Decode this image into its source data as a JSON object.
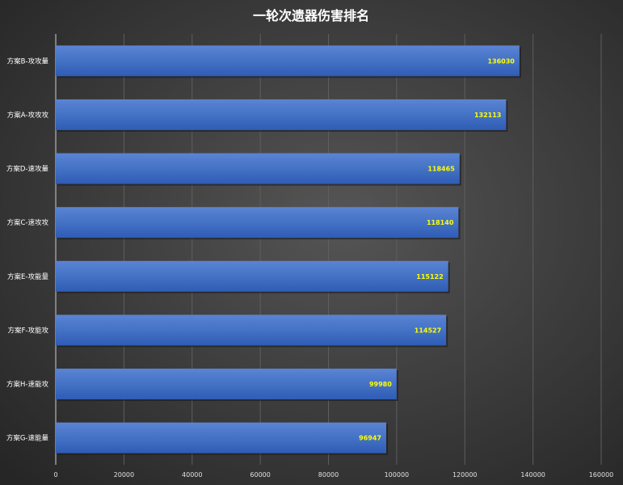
{
  "chart_data": {
    "type": "bar",
    "orientation": "horizontal",
    "title": "一轮次遗器伤害排名",
    "categories": [
      "方案B-攻攻量",
      "方案A-攻攻攻",
      "方案D-速攻量",
      "方案C-速攻攻",
      "方案E-攻能量",
      "方案F-攻能攻",
      "方案H-速能攻",
      "方案G-速能量"
    ],
    "values": [
      136030,
      132113,
      118465,
      118140,
      115122,
      114527,
      99980,
      96947
    ],
    "xlim": [
      0,
      160000
    ],
    "xticks": [
      0,
      20000,
      40000,
      60000,
      80000,
      100000,
      120000,
      140000,
      160000
    ],
    "grid": true,
    "legend": "none",
    "colors": {
      "bar": "#4472c4",
      "data_label": "#ffff00",
      "text": "#ffffff",
      "background": "#3a3a3a"
    }
  }
}
